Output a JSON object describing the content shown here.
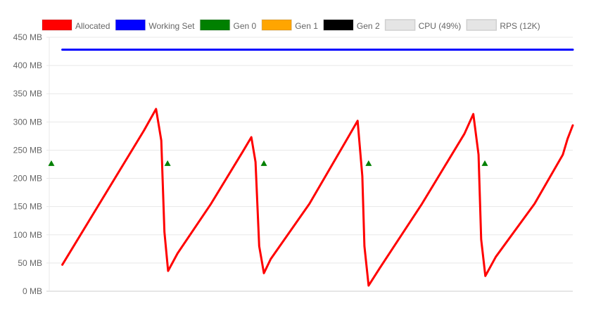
{
  "chart_data": {
    "type": "line",
    "ylim": [
      0,
      450
    ],
    "xlim": [
      0,
      100
    ],
    "grid": true,
    "legend_position": "top",
    "y_ticks": [
      "0 MB",
      "50 MB",
      "100 MB",
      "150 MB",
      "200 MB",
      "250 MB",
      "300 MB",
      "350 MB",
      "400 MB",
      "450 MB"
    ],
    "legend": [
      {
        "label": "Allocated",
        "color": "#ff0000",
        "enabled": true
      },
      {
        "label": "Working Set",
        "color": "#0000ff",
        "enabled": true
      },
      {
        "label": "Gen 0",
        "color": "#008000",
        "enabled": true
      },
      {
        "label": "Gen 1",
        "color": "#ffa500",
        "enabled": true
      },
      {
        "label": "Gen 2",
        "color": "#000000",
        "enabled": true
      },
      {
        "label": "CPU (49%)",
        "color": "#e5e5e5",
        "enabled": false
      },
      {
        "label": "RPS (12K)",
        "color": "#e5e5e5",
        "enabled": false
      }
    ],
    "series": [
      {
        "name": "Allocated",
        "color": "#ff0000",
        "kind": "line",
        "points": [
          [
            2.5,
            47
          ],
          [
            18.1,
            285
          ],
          [
            20.4,
            323
          ],
          [
            21.4,
            267
          ],
          [
            22,
            105
          ],
          [
            22.7,
            36
          ],
          [
            24.5,
            67
          ],
          [
            30.9,
            155
          ],
          [
            37,
            248
          ],
          [
            38.6,
            273
          ],
          [
            39.4,
            229
          ],
          [
            40.1,
            80
          ],
          [
            41,
            32
          ],
          [
            42.3,
            57
          ],
          [
            49.7,
            155
          ],
          [
            57.1,
            273
          ],
          [
            58.9,
            302
          ],
          [
            59.8,
            204
          ],
          [
            60.2,
            80
          ],
          [
            61,
            10
          ],
          [
            63.2,
            42
          ],
          [
            71.2,
            155
          ],
          [
            79.3,
            279
          ],
          [
            81,
            314
          ],
          [
            82,
            242
          ],
          [
            82.5,
            92
          ],
          [
            83.3,
            27
          ],
          [
            85.3,
            61
          ],
          [
            92.7,
            155
          ],
          [
            98.1,
            242
          ],
          [
            99,
            270
          ],
          [
            100,
            294
          ]
        ]
      },
      {
        "name": "Working Set",
        "color": "#0000ff",
        "kind": "line",
        "points": [
          [
            2.5,
            428
          ],
          [
            100,
            428
          ]
        ]
      },
      {
        "name": "Gen 0",
        "color": "#008000",
        "kind": "marker",
        "points": [
          [
            0.4,
            227
          ],
          [
            22.6,
            227
          ],
          [
            41,
            227
          ],
          [
            61,
            227
          ],
          [
            83.2,
            227
          ]
        ]
      }
    ]
  }
}
